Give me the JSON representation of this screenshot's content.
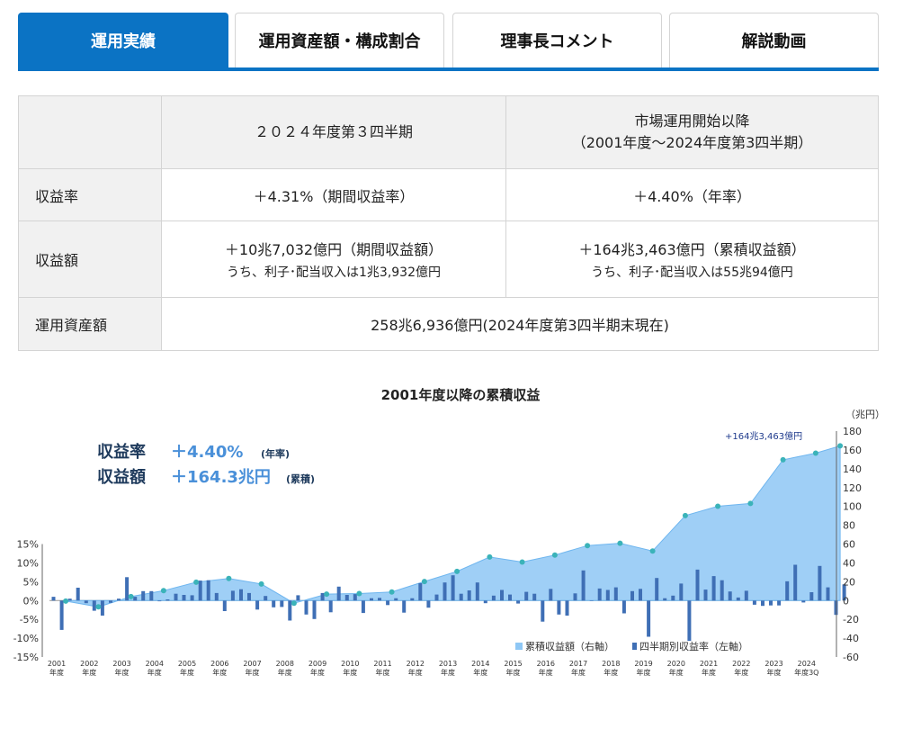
{
  "tabs": [
    {
      "label": "運用実績",
      "active": true
    },
    {
      "label": "運用資産額・構成割合",
      "active": false
    },
    {
      "label": "理事長コメント",
      "active": false
    },
    {
      "label": "解説動画",
      "active": false
    }
  ],
  "colors": {
    "accent": "#0b73c4",
    "area": "#8ec7f5",
    "bar": "#3f6fb5",
    "point": "#3bb3b9"
  },
  "table": {
    "header": {
      "col1": "２０２４年度第３四半期",
      "col2_line1": "市場運用開始以降",
      "col2_line2": "（2001年度～2024年度第3四半期）"
    },
    "rows": {
      "rate": {
        "label": "収益率",
        "col1": "＋4.31%（期間収益率）",
        "col2": "＋4.40%（年率）"
      },
      "amount": {
        "label": "収益額",
        "col1": "＋10兆7,032億円（期間収益額）",
        "col1_sub": "うち、利子･配当収入は1兆3,932億円",
        "col2": "＋164兆3,463億円（累積収益額）",
        "col2_sub": "うち、利子･配当収入は55兆94億円"
      },
      "assets": {
        "label": "運用資産額",
        "value": "258兆6,936億円(2024年度第3四半期末現在)"
      }
    }
  },
  "chart_data": {
    "type": "bar+area",
    "title": "2001年度以降の累積収益",
    "right_unit": "（兆円）",
    "callout": "+164兆3,463億円",
    "summary": {
      "rate_label": "収益率",
      "rate_value": "＋4.40%",
      "rate_note": "(年率)",
      "amount_label": "収益額",
      "amount_value": "＋164.3兆円",
      "amount_note": "(累積)"
    },
    "left_axis": {
      "ylim": [
        -15,
        15
      ],
      "ticks": [
        "15%",
        "10%",
        "5%",
        "0%",
        "-5%",
        "-10%",
        "-15%"
      ]
    },
    "right_axis": {
      "ylim": [
        -60,
        180
      ],
      "ticks": [
        "180",
        "160",
        "140",
        "120",
        "100",
        "80",
        "60",
        "40",
        "20",
        "0",
        "-20",
        "-40",
        "-60"
      ]
    },
    "years": [
      "2001",
      "2002",
      "2003",
      "2004",
      "2005",
      "2006",
      "2007",
      "2008",
      "2009",
      "2010",
      "2011",
      "2012",
      "2013",
      "2014",
      "2015",
      "2016",
      "2017",
      "2018",
      "2019",
      "2020",
      "2021",
      "2022",
      "2023",
      "2024"
    ],
    "year_suffix": "年度",
    "last_suffix": "年度3Q",
    "legend": [
      {
        "name": "累積収益額（右軸）"
      },
      {
        "name": "四半期別収益率（左軸）"
      }
    ],
    "series": [
      {
        "name": "四半期別収益率（左軸）",
        "values": [
          1.0,
          -7.8,
          0.5,
          3.4,
          -0.7,
          -2.7,
          -4.0,
          -0.6,
          0.5,
          6.2,
          1.0,
          2.5,
          2.5,
          -0.2,
          0.3,
          1.8,
          1.5,
          1.4,
          5.3,
          5.4,
          2.0,
          -2.8,
          2.6,
          3.0,
          2.0,
          -2.4,
          1.2,
          -1.8,
          -1.7,
          -5.3,
          1.4,
          -3.7,
          -4.9,
          2.0,
          -3.1,
          3.7,
          1.5,
          1.7,
          -3.3,
          0.6,
          0.7,
          -1.2,
          0.6,
          -3.2,
          0.6,
          4.6,
          -1.9,
          1.6,
          4.8,
          6.7,
          1.8,
          2.7,
          4.8,
          -0.7,
          1.3,
          2.8,
          1.6,
          -0.8,
          2.3,
          1.8,
          -5.6,
          3.1,
          -3.7,
          -4.0,
          1.9,
          8.0,
          -0.1,
          3.2,
          2.8,
          3.5,
          -3.4,
          2.5,
          3.1,
          -9.6,
          6.0,
          0.6,
          1.3,
          4.5,
          -10.7,
          8.2,
          2.9,
          6.5,
          5.4,
          2.4,
          0.8,
          2.6,
          -1.1,
          -1.4,
          -1.3,
          -1.3,
          5.1,
          9.5,
          -0.5,
          2.2,
          9.2,
          3.5,
          -3.8,
          4.3
        ]
      },
      {
        "name": "累積収益額（右軸）",
        "x": [
          0,
          1,
          2,
          3,
          4,
          5,
          6,
          7,
          8,
          9,
          10,
          11,
          12,
          13,
          14,
          15,
          16,
          17,
          18,
          19,
          20,
          21,
          22,
          23,
          23.75
        ],
        "values": [
          -0.6,
          -6.7,
          4.2,
          10.5,
          19.5,
          23.5,
          17.5,
          -2.8,
          6.8,
          7.4,
          9.1,
          20.2,
          30.9,
          46.2,
          40.9,
          48.2,
          58.4,
          60.9,
          52.6,
          90.2,
          100.2,
          103.1,
          149.5,
          156.6,
          164.3
        ]
      }
    ]
  }
}
